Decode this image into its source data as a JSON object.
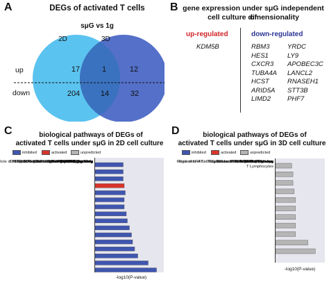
{
  "panel_a": {
    "letter": "A",
    "title": "DEGs of activated T cells",
    "subtitle": "sμG vs 1g",
    "set_2d": "2D",
    "set_3d": "3D",
    "row_up": "up",
    "row_down": "down",
    "counts": {
      "up_2d_only": "17",
      "up_both": "1",
      "up_3d_only": "12",
      "down_2d_only": "204",
      "down_both": "14",
      "down_3d_only": "32"
    },
    "colors": {
      "left_circle": "#5bc3ef",
      "right_circle": "#5470c9",
      "overlap": "#3a72bf"
    }
  },
  "panel_b": {
    "letter": "B",
    "title_line1": "gene expression under sμG independent of",
    "title_line2": "cell culture dimensionality",
    "up_header": "up-regulated",
    "down_header": "down-regulated",
    "up_genes": [
      "KDM5B"
    ],
    "down_genes_col1": [
      "RBM3",
      "HES1",
      "CXCR3",
      "TUBA4A",
      "HCST",
      "ARID5A",
      "LIMD2"
    ],
    "down_genes_col2": [
      "YRDC",
      "LY9",
      "APOBEC3C",
      "LANCL2",
      "RNASEH1",
      "STT3B",
      "PHF7"
    ],
    "colors": {
      "up": "#d0252a",
      "down": "#2a3593"
    }
  },
  "legend": {
    "inhibited": "inhibited",
    "activated": "activated",
    "unpredicted": "unpredicted"
  },
  "colors": {
    "inhibited": "#3f56b0",
    "activated": "#d9342b",
    "unpredicted": "#b5b5b5",
    "plot_bg": "#e6e6ee"
  },
  "chart_data": [
    {
      "panel": "C",
      "type": "bar",
      "orientation": "horizontal",
      "title_line1": "biological pathways of DEGs of",
      "title_line2": "activated T cells under sμG in 2D cell culture",
      "xlabel": "-log10(P-value)",
      "xlim": [
        0,
        3.2
      ],
      "categories": [
        "PI3K/AKT Signaling",
        "IL-2 Signaling",
        "Gq12/13 Signaling",
        "PD-1, PD-L1 cancer immunotherapy pathway",
        "Role of NFAT in Regulation of the Immune Response",
        "IL-3 Signaling",
        "IL-15 Signaling",
        "IL-7 Signaling Pathway",
        "T Cell Receptor Signaling",
        "JAK/STAT Signaling",
        "Cell Cycle Control of Chromosomal Replication",
        "PEDF Signaling",
        "ICOS-ICOSL Signaling in T Helper Cells",
        "CD28 Signaling in T Helper Cells",
        "Serotonin Degradation",
        "Noradrenaline and Adrenaline Degradation"
      ],
      "values": [
        1.35,
        1.35,
        1.35,
        1.4,
        1.45,
        1.4,
        1.4,
        1.5,
        1.55,
        1.65,
        1.75,
        1.8,
        1.9,
        2.05,
        2.55,
        2.95
      ],
      "status": [
        "inhibited",
        "inhibited",
        "inhibited",
        "activated",
        "inhibited",
        "inhibited",
        "inhibited",
        "inhibited",
        "inhibited",
        "inhibited",
        "inhibited",
        "inhibited",
        "inhibited",
        "inhibited",
        "inhibited",
        "inhibited"
      ]
    },
    {
      "panel": "D",
      "type": "bar",
      "orientation": "horizontal",
      "title_line1": "biological pathways of DEGs of",
      "title_line2": "activated T cells under sμG in 3D cell culture",
      "xlabel": "-log10(P-value)",
      "xlim": [
        0,
        3.8
      ],
      "categories": [
        "HIF1α Signaling",
        "Role of NFAT in Regulation of the Immune Response",
        "Senescence Pathway",
        "T Cell Exhaustion Signaling Pathway",
        "Th2 Pathway",
        "Notch Signaling",
        "Regulation of IL-2 Expression in Activated and Anergic T Lymphocytes",
        "Th1 Pathway",
        "PPARα/RXRα Activation",
        "WNT/Ca+ pathway",
        "Th1 and Th2 Activation Pathway"
      ],
      "values": [
        1.3,
        1.4,
        1.4,
        1.5,
        1.6,
        1.6,
        1.6,
        1.6,
        1.6,
        2.6,
        3.2
      ],
      "status": [
        "unpredicted",
        "unpredicted",
        "unpredicted",
        "unpredicted",
        "unpredicted",
        "unpredicted",
        "unpredicted",
        "unpredicted",
        "unpredicted",
        "unpredicted",
        "unpredicted"
      ]
    }
  ],
  "panel_c": {
    "letter": "C"
  },
  "panel_d": {
    "letter": "D"
  }
}
